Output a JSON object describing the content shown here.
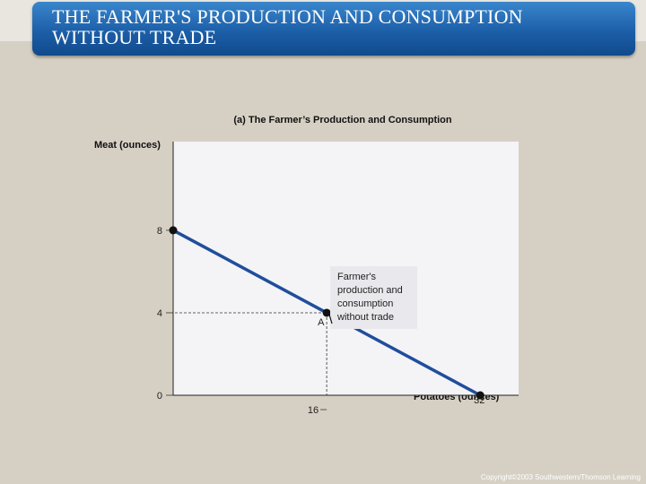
{
  "slide": {
    "title": "THE FARMER'S PRODUCTION AND CONSUMPTION\nWITHOUT TRADE",
    "copyright": "Copyright©2003  Southwestern/Thomson Learning"
  },
  "chart_data": {
    "type": "line",
    "title": "(a) The Farmer’s Production and Consumption",
    "xlabel": "Potatoes (ounces)",
    "ylabel": "Meat (ounces)",
    "xlim": [
      0,
      36
    ],
    "ylim": [
      0,
      12.3
    ],
    "series": [
      {
        "x": [
          0,
          32
        ],
        "y": [
          8,
          0
        ],
        "color": "#1f4e9c"
      }
    ],
    "x_ticks": [
      {
        "value": 16,
        "label": "16"
      },
      {
        "value": 32,
        "label": "32"
      }
    ],
    "y_ticks": [
      {
        "value": 0,
        "label": "0"
      },
      {
        "value": 4,
        "label": "4"
      },
      {
        "value": 8,
        "label": "8"
      }
    ],
    "points": [
      {
        "x": 0,
        "y": 8,
        "label": ""
      },
      {
        "x": 16,
        "y": 4,
        "label": "A"
      },
      {
        "x": 32,
        "y": 0,
        "label": ""
      }
    ],
    "annotation": {
      "text": "Farmer's\nproduction and\nconsumption\nwithout trade",
      "target_point": "A"
    },
    "grid": false,
    "plot_background": "#f4f3f6"
  }
}
